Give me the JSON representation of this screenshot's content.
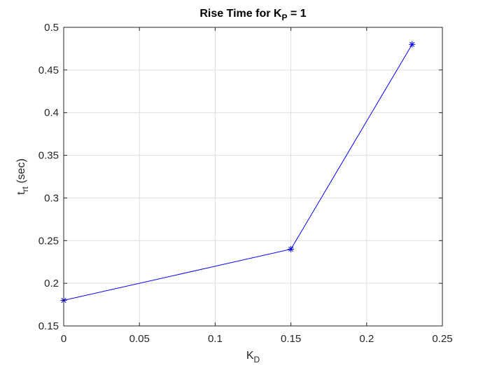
{
  "chart_data": {
    "type": "line",
    "title_main": "Rise Time for K",
    "title_sub": "P",
    "title_rest": " = 1",
    "xlabel_main": "K",
    "xlabel_sub": "D",
    "ylabel_main": "t",
    "ylabel_sub": "rt",
    "ylabel_rest": " (sec)",
    "xlim": [
      0,
      0.25
    ],
    "ylim": [
      0.15,
      0.5
    ],
    "xticks": [
      0,
      0.05,
      0.1,
      0.15,
      0.2,
      0.25
    ],
    "xtick_labels": [
      "0",
      "0.05",
      "0.1",
      "0.15",
      "0.2",
      "0.25"
    ],
    "yticks": [
      0.15,
      0.2,
      0.25,
      0.3,
      0.35,
      0.4,
      0.45,
      0.5
    ],
    "ytick_labels": [
      "0.15",
      "0.2",
      "0.25",
      "0.3",
      "0.35",
      "0.4",
      "0.45",
      "0.5"
    ],
    "grid": true,
    "marker": "asterisk",
    "series": [
      {
        "color": "#0000ff",
        "x": [
          0,
          0.15,
          0.23
        ],
        "y": [
          0.18,
          0.24,
          0.48
        ]
      }
    ]
  }
}
